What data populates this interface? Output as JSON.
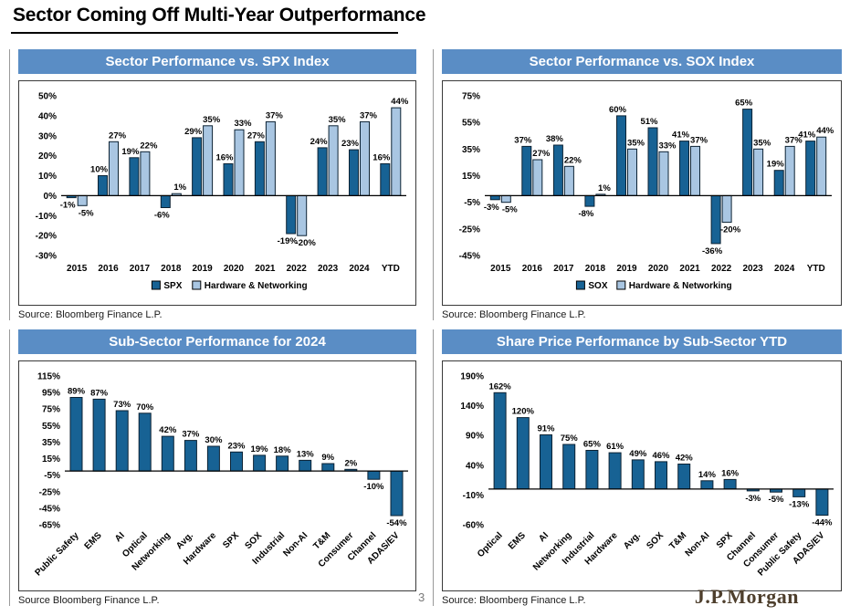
{
  "page": {
    "title": "Sector Coming Off Multi-Year Outperformance",
    "page_number": "3",
    "logo": "J.P.Morgan"
  },
  "colors": {
    "header_bg": "#5a8dc5",
    "dark_bar": "#176294",
    "light_bar": "#a9c6e2",
    "bar_border": "#0c2233",
    "logo_color": "#4e3f2d"
  },
  "panels": [
    {
      "header": "Sector Performance vs. SPX Index",
      "source": "Source: Bloomberg Finance L.P."
    },
    {
      "header": "Sector Performance vs. SOX Index",
      "source": "Source: Bloomberg Finance L.P."
    },
    {
      "header": "Sub-Sector Performance for 2024",
      "source": "Source Bloomberg Finance L.P."
    },
    {
      "header": "Share Price Performance by Sub-Sector YTD",
      "source": "Source: Bloomberg Finance L.P."
    }
  ],
  "chart_data": [
    {
      "type": "bar",
      "title": "Sector Performance vs. SPX Index",
      "categories": [
        "2015",
        "2016",
        "2017",
        "2018",
        "2019",
        "2020",
        "2021",
        "2022",
        "2023",
        "2024",
        "YTD"
      ],
      "series": [
        {
          "name": "SPX",
          "color": "dark",
          "values": [
            -1,
            10,
            19,
            -6,
            29,
            16,
            27,
            -19,
            24,
            23,
            16
          ]
        },
        {
          "name": "Hardware & Networking",
          "color": "light",
          "values": [
            -5,
            27,
            22,
            1,
            35,
            33,
            37,
            -20,
            35,
            37,
            44
          ]
        }
      ],
      "ylim": [
        -30,
        50
      ],
      "yticks": [
        50,
        40,
        30,
        20,
        10,
        0,
        -10,
        -20,
        -30
      ],
      "grid": false,
      "legend_position": "bottom"
    },
    {
      "type": "bar",
      "title": "Sector Performance vs. SOX Index",
      "categories": [
        "2015",
        "2016",
        "2017",
        "2018",
        "2019",
        "2020",
        "2021",
        "2022",
        "2023",
        "2024",
        "YTD"
      ],
      "series": [
        {
          "name": "SOX",
          "color": "dark",
          "values": [
            -3,
            37,
            38,
            -8,
            60,
            51,
            41,
            -36,
            65,
            19,
            41
          ]
        },
        {
          "name": "Hardware & Networking",
          "color": "light",
          "values": [
            -5,
            27,
            22,
            1,
            35,
            33,
            37,
            -20,
            35,
            37,
            44
          ]
        }
      ],
      "ylim": [
        -45,
        75
      ],
      "yticks": [
        75,
        55,
        35,
        15,
        -5,
        -25,
        -45
      ],
      "grid": false,
      "legend_position": "bottom"
    },
    {
      "type": "bar",
      "title": "Sub-Sector Performance for 2024",
      "categories": [
        "Public Safety",
        "EMS",
        "AI",
        "Optical",
        "Networking",
        "Avg.",
        "Hardware",
        "SPX",
        "SOX",
        "Industrial",
        "Non-AI",
        "T&M",
        "Consumer",
        "Channel",
        "ADAS/EV"
      ],
      "values": [
        89,
        87,
        73,
        70,
        42,
        37,
        30,
        23,
        19,
        18,
        13,
        9,
        2,
        -10,
        -54
      ],
      "ylim": [
        -65,
        115
      ],
      "yticks": [
        115,
        95,
        75,
        55,
        35,
        15,
        -5,
        -25,
        -45,
        -65
      ],
      "grid": false,
      "legend_position": "none"
    },
    {
      "type": "bar",
      "title": "Share Price Performance by Sub-Sector YTD",
      "categories": [
        "Optical",
        "EMS",
        "AI",
        "Networking",
        "Industrial",
        "Hardware",
        "Avg.",
        "SOX",
        "T&M",
        "Non-AI",
        "SPX",
        "Channel",
        "Consumer",
        "Public Safety",
        "ADAS/EV"
      ],
      "values": [
        162,
        120,
        91,
        75,
        65,
        61,
        49,
        46,
        42,
        14,
        16,
        -3,
        -5,
        -13,
        -44
      ],
      "ylim": [
        -60,
        190
      ],
      "yticks": [
        190,
        140,
        90,
        40,
        -10,
        -60
      ],
      "grid": false,
      "legend_position": "none"
    }
  ]
}
